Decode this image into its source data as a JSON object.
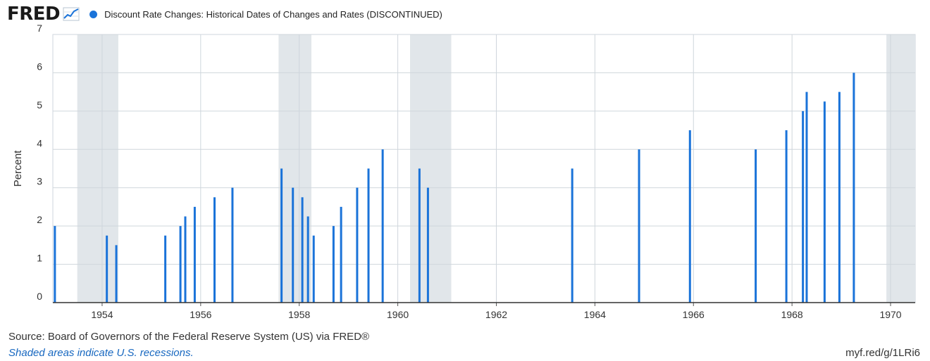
{
  "header": {
    "logo_text": "FRED",
    "logo_graph_icon": "line-chart-icon",
    "series_title": "Discount Rate Changes: Historical Dates of Changes and Rates (DISCONTINUED)",
    "series_color": "#1a73d9"
  },
  "footer": {
    "source": "Source: Board of Governors of the Federal Reserve System (US) via FRED®",
    "recession_note": "Shaded areas indicate U.S. recessions.",
    "short_url": "myf.red/g/1LRi6"
  },
  "chart_data": {
    "type": "bar",
    "ylabel": "Percent",
    "xlabel": "",
    "xlim": [
      1953.0,
      1970.5
    ],
    "ylim": [
      0,
      7
    ],
    "x_ticks": [
      "1954",
      "1956",
      "1958",
      "1960",
      "1962",
      "1964",
      "1966",
      "1968",
      "1970"
    ],
    "y_ticks": [
      "0",
      "1",
      "2",
      "3",
      "4",
      "5",
      "6",
      "7"
    ],
    "grid": true,
    "bar_color": "#1a73d9",
    "recession_shading_color": "#e1e6ea",
    "recessions": [
      {
        "start": "1953-07",
        "end": "1954-05"
      },
      {
        "start": "1957-08",
        "end": "1958-04"
      },
      {
        "start": "1960-04",
        "end": "1961-02"
      },
      {
        "start": "1969-12",
        "end": "1970-11"
      }
    ],
    "x": [
      "1953-01-16",
      "1954-02-05",
      "1954-04-16",
      "1955-04-14",
      "1955-08-04",
      "1955-09-09",
      "1955-11-18",
      "1956-04-13",
      "1956-08-24",
      "1957-08-23",
      "1957-11-15",
      "1958-01-24",
      "1958-03-07",
      "1958-04-18",
      "1958-09-12",
      "1958-11-07",
      "1959-03-06",
      "1959-05-29",
      "1959-09-11",
      "1960-06-10",
      "1960-08-12",
      "1963-07-17",
      "1964-11-24",
      "1965-12-06",
      "1967-04-07",
      "1967-11-20",
      "1968-03-22",
      "1968-04-19",
      "1968-08-30",
      "1968-12-18",
      "1969-04-04"
    ],
    "values": [
      2.0,
      1.75,
      1.5,
      1.75,
      2.0,
      2.25,
      2.5,
      2.75,
      3.0,
      3.5,
      3.0,
      2.75,
      2.25,
      1.75,
      2.0,
      2.5,
      3.0,
      3.5,
      4.0,
      3.5,
      3.0,
      3.5,
      4.0,
      4.5,
      4.0,
      4.5,
      5.0,
      5.5,
      5.25,
      5.5,
      6.0
    ]
  }
}
